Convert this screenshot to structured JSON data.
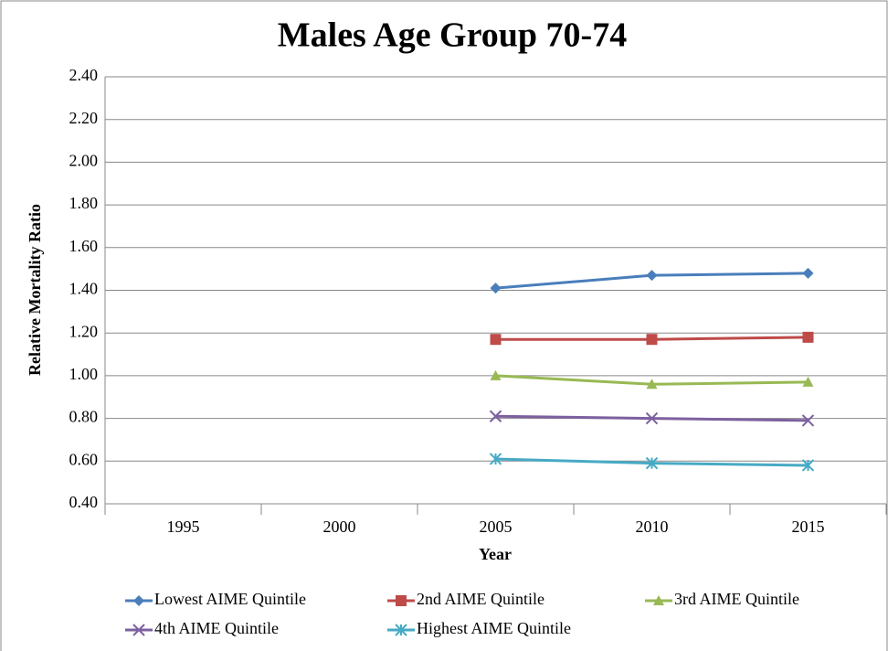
{
  "chart_data": {
    "type": "line",
    "title": "Males Age Group 70-74",
    "x_label": "Year",
    "y_label": "Relative Mortality Ratio",
    "categories": [
      "1995",
      "2000",
      "2005",
      "2010",
      "2015"
    ],
    "series": [
      {
        "name": "Lowest AIME Quintile",
        "color": "#4a7ebb",
        "marker": "diamond",
        "values": [
          null,
          null,
          1.41,
          1.47,
          1.48
        ]
      },
      {
        "name": "2nd AIME Quintile",
        "color": "#be4b48",
        "marker": "square",
        "values": [
          null,
          null,
          1.17,
          1.17,
          1.18
        ]
      },
      {
        "name": "3rd AIME Quintile",
        "color": "#98b954",
        "marker": "triangle",
        "values": [
          null,
          null,
          1.0,
          0.96,
          0.97
        ]
      },
      {
        "name": "4th AIME Quintile",
        "color": "#7d60a0",
        "marker": "x",
        "values": [
          null,
          null,
          0.81,
          0.8,
          0.79
        ]
      },
      {
        "name": "Highest AIME Quintile",
        "color": "#46aac5",
        "marker": "asterisk",
        "values": [
          null,
          null,
          0.61,
          0.59,
          0.58
        ]
      }
    ],
    "ylim": [
      0.4,
      2.4
    ],
    "yticks": [
      {
        "value": 0.4,
        "label": "0.40"
      },
      {
        "value": 0.6,
        "label": "0.60"
      },
      {
        "value": 0.8,
        "label": "0.80"
      },
      {
        "value": 1.0,
        "label": "1.00"
      },
      {
        "value": 1.2,
        "label": "1.20"
      },
      {
        "value": 1.4,
        "label": "1.40"
      },
      {
        "value": 1.6,
        "label": "1.60"
      },
      {
        "value": 1.8,
        "label": "1.80"
      },
      {
        "value": 2.0,
        "label": "2.00"
      },
      {
        "value": 2.2,
        "label": "2.20"
      },
      {
        "value": 2.4,
        "label": "2.40"
      }
    ],
    "grid": true,
    "legend": "bottom"
  }
}
